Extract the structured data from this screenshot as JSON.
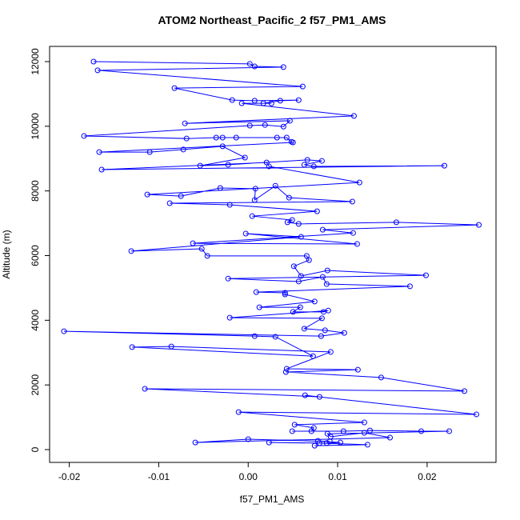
{
  "chart_data": {
    "type": "line",
    "title": "ATOM2 Northeast_Pacific_2 f57_PM1_AMS",
    "x_label": "f57_PM1_AMS",
    "y_label": "Altitude (m)",
    "color": "#0000ff",
    "markers": "open-circle",
    "xlim": [
      -0.0222,
      0.0277
    ],
    "ylim": [
      -396,
      12470
    ],
    "xticks": [
      -0.02,
      -0.01,
      {
        "value": 0,
        "label": "0.00"
      },
      0.01,
      0.02
    ],
    "yticks": [
      0,
      2000,
      4000,
      6000,
      8000,
      10000,
      12000
    ],
    "x": [
      -0.01728,
      0.00018,
      0.00072,
      0.00394,
      -0.01683,
      0.00609,
      -0.00824,
      -0.00179,
      0.00072,
      0.00564,
      0.00358,
      0.0017,
      0.0026,
      -0.00072,
      0.01182,
      -0.00707,
      0.00466,
      0.00394,
      0.00188,
      0.00018,
      -0.01835,
      -0.00689,
      -0.00358,
      -0.00286,
      -0.00134,
      0.00322,
      0.0043,
      0.00483,
      0.00501,
      -0.01665,
      -0.01101,
      -0.00725,
      -0.00286,
      -0.00036,
      -0.00537,
      -0.00224,
      0.00662,
      0.00824,
      0.00627,
      0.00734,
      0.02193,
      -0.01638,
      0.00206,
      0.00233,
      0.01244,
      -0.01128,
      -0.00752,
      -0.00313,
      0.00081,
      0.00072,
      0.00304,
      0.00457,
      0.01164,
      -0.00877,
      -0.00206,
      0.0077,
      0.00045,
      0.00492,
      0.00439,
      0.00564,
      0.01656,
      0.02578,
      0.00833,
      0.01173,
      -0.00618,
      0.01218,
      -0.00027,
      0.00591,
      -0.01307,
      -0.00519,
      -0.00457,
      0.00654,
      0.0068,
      0.0051,
      0.00591,
      0.00886,
      0.01987,
      -0.00224,
      0.00564,
      0.00833,
      0.00877,
      0.01808,
      0.0009,
      0.00412,
      0.00412,
      0.00743,
      0.00125,
      0.00582,
      0.00501,
      0.00842,
      0.00895,
      -0.00206,
      0.00824,
      0.00627,
      0.00859,
      0.01074,
      0.00815,
      -0.02059,
      0.00072,
      0.00304,
      0.00725,
      -0.01298,
      -0.00859,
      0.00922,
      0.0043,
      0.01226,
      0.00421,
      0.01486,
      0.02417,
      -0.01155,
      0.00797,
      0.00636,
      0.02551,
      -0.00107,
      0.01298,
      0.00519,
      0.00734,
      0.00707,
      0.00492,
      0.01065,
      0.01361,
      0.01934,
      0.02247,
      0.00886,
      0.00922,
      0.01298,
      0.01585,
      -0.00591,
      0,
      0.00913,
      0.00779,
      0.0103,
      0.00877,
      0.00233,
      0.00797,
      0.01334,
      0.00743
    ],
    "values": [
      12000,
      11930,
      11850,
      11830,
      11730,
      11230,
      11180,
      10810,
      10790,
      10810,
      10790,
      10710,
      10710,
      10710,
      10320,
      10090,
      10170,
      9990,
      10040,
      10020,
      9700,
      9620,
      9650,
      9650,
      9650,
      9650,
      9650,
      9520,
      9500,
      9200,
      9200,
      9280,
      9380,
      9030,
      8780,
      8810,
      8960,
      8930,
      8810,
      8760,
      8780,
      8660,
      8880,
      8760,
      8260,
      7890,
      7840,
      8090,
      8070,
      7720,
      8160,
      7790,
      7670,
      7620,
      7570,
      7370,
      7220,
      7100,
      7030,
      6980,
      7030,
      6950,
      6800,
      6700,
      6380,
      6360,
      6680,
      6580,
      6140,
      6210,
      5990,
      5990,
      5860,
      5670,
      5370,
      5540,
      5390,
      5290,
      5200,
      5340,
      5120,
      5050,
      4870,
      4850,
      4800,
      4580,
      4400,
      4400,
      4260,
      4260,
      4300,
      4080,
      4060,
      3740,
      3690,
      3610,
      3510,
      3660,
      3510,
      3490,
      2890,
      3170,
      3190,
      3020,
      2500,
      2470,
      2400,
      2230,
      1810,
      1880,
      1630,
      1680,
      1090,
      1160,
      840,
      770,
      670,
      570,
      570,
      570,
      590,
      570,
      570,
      490,
      400,
      520,
      370,
      220,
      320,
      250,
      270,
      220,
      200,
      220,
      200,
      150,
      120
    ]
  }
}
